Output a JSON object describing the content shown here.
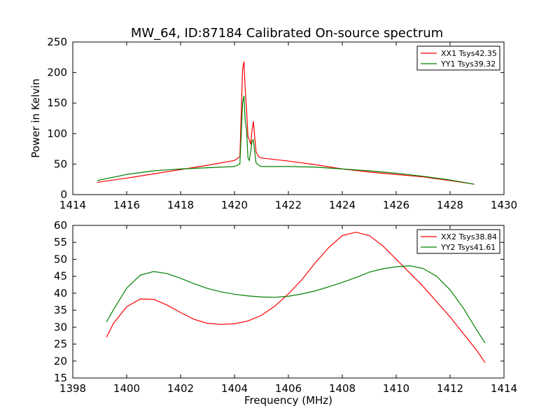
{
  "figure": {
    "title": "MW_64, ID:87184 Calibrated On-source spectrum"
  },
  "chart_data": [
    {
      "type": "line",
      "title": "MW_64, ID:87184 Calibrated On-source spectrum",
      "xlabel": "",
      "ylabel": "Power in Kelvin",
      "xlim": [
        1414,
        1430
      ],
      "ylim": [
        0,
        250
      ],
      "xticks": [
        1414,
        1416,
        1418,
        1420,
        1422,
        1424,
        1426,
        1428,
        1430
      ],
      "yticks": [
        0,
        50,
        100,
        150,
        200,
        250
      ],
      "legend_position": "top-right",
      "grid": false,
      "series": [
        {
          "name": "XX1 Tsys42.35",
          "color": "#ff0000",
          "x": [
            1414.9,
            1416,
            1417,
            1418,
            1419,
            1420,
            1420.2,
            1420.3,
            1420.35,
            1420.4,
            1420.45,
            1420.5,
            1420.55,
            1420.6,
            1420.65,
            1420.7,
            1420.75,
            1420.8,
            1420.9,
            1421.0,
            1421.2,
            1422,
            1423,
            1424,
            1425,
            1426,
            1427,
            1428,
            1428.9
          ],
          "y": [
            20,
            27,
            34,
            41,
            48,
            56,
            62,
            205,
            218,
            170,
            138,
            95,
            90,
            82,
            105,
            120,
            95,
            70,
            62,
            60,
            59,
            55,
            49,
            42,
            37,
            33,
            29,
            23,
            17
          ]
        },
        {
          "name": "YY1 Tsys39.32",
          "color": "#008000",
          "x": [
            1414.9,
            1416,
            1417,
            1418,
            1419,
            1420,
            1420.2,
            1420.3,
            1420.35,
            1420.4,
            1420.45,
            1420.5,
            1420.55,
            1420.6,
            1420.65,
            1420.7,
            1420.75,
            1420.8,
            1420.9,
            1421.0,
            1421.2,
            1422,
            1423,
            1424,
            1425,
            1426,
            1427,
            1428,
            1428.9
          ],
          "y": [
            23,
            33,
            39,
            42,
            44,
            46,
            50,
            150,
            162,
            120,
            105,
            60,
            56,
            70,
            88,
            90,
            70,
            52,
            48,
            46,
            46,
            46,
            45,
            42,
            39,
            35,
            30,
            24,
            17
          ]
        }
      ]
    },
    {
      "type": "line",
      "title": "",
      "xlabel": "Frequency (MHz)",
      "ylabel": "",
      "xlim": [
        1398,
        1414
      ],
      "ylim": [
        15,
        60
      ],
      "xticks": [
        1398,
        1400,
        1402,
        1404,
        1406,
        1408,
        1410,
        1412,
        1414
      ],
      "yticks": [
        15,
        20,
        25,
        30,
        35,
        40,
        45,
        50,
        55,
        60
      ],
      "legend_position": "top-right",
      "grid": false,
      "series": [
        {
          "name": "XX2 Tsys38.84",
          "color": "#ff0000",
          "x": [
            1399.25,
            1399.5,
            1400,
            1400.5,
            1401,
            1401.5,
            1402,
            1402.5,
            1403,
            1403.5,
            1404,
            1404.5,
            1405,
            1405.5,
            1406,
            1406.5,
            1407,
            1407.5,
            1408,
            1408.5,
            1409,
            1409.5,
            1410,
            1410.5,
            1411,
            1411.5,
            1412,
            1412.5,
            1413,
            1413.3
          ],
          "y": [
            27,
            31,
            36,
            38.3,
            38.2,
            36.5,
            34.3,
            32.3,
            31.1,
            30.8,
            31,
            31.8,
            33.5,
            36.2,
            39.8,
            44,
            49,
            53.5,
            57,
            58,
            57,
            54,
            50,
            46,
            42,
            37.5,
            33,
            28,
            23,
            19.5
          ]
        },
        {
          "name": "YY2 Tsys41.61",
          "color": "#008000",
          "x": [
            1399.25,
            1399.5,
            1400,
            1400.5,
            1401,
            1401.5,
            1402,
            1402.5,
            1403,
            1403.5,
            1404,
            1404.5,
            1405,
            1405.5,
            1406,
            1406.5,
            1407,
            1407.5,
            1408,
            1408.5,
            1409,
            1409.5,
            1410,
            1410.5,
            1411,
            1411.5,
            1412,
            1412.5,
            1413,
            1413.3
          ],
          "y": [
            31.5,
            35,
            41.5,
            45.3,
            46.4,
            45.8,
            44.4,
            42.8,
            41.4,
            40.4,
            39.7,
            39.2,
            38.9,
            38.8,
            39.1,
            39.8,
            40.7,
            41.9,
            43.2,
            44.6,
            46.2,
            47.2,
            47.8,
            48.1,
            47.3,
            45,
            41,
            35.5,
            29,
            25.3
          ]
        }
      ]
    }
  ]
}
